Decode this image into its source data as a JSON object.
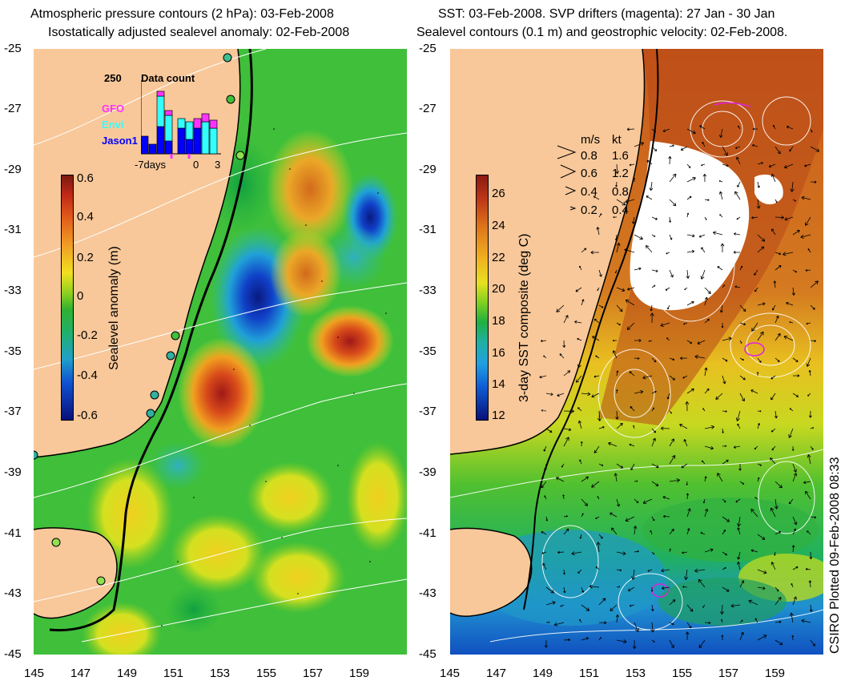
{
  "left_panel": {
    "title_line1": "Atmospheric pressure contours (2 hPa): 03-Feb-2008",
    "title_line2": "Isostatically adjusted sealevel anomaly: 02-Feb-2008",
    "colorbar": {
      "label": "Sealevel anomaly (m)",
      "ticks": [
        "0.6",
        "0.4",
        "0.2",
        "0",
        "-0.2",
        "-0.4",
        "-0.6"
      ]
    },
    "inset": {
      "title": "Data count",
      "ymax_label": "250",
      "legend": [
        {
          "name": "GFO",
          "color": "#ff33ff"
        },
        {
          "name": "Envi",
          "color": "#33ffff"
        },
        {
          "name": "Jason1",
          "color": "#0000ff"
        }
      ],
      "xlabels": [
        "-7days",
        "0",
        "3"
      ]
    }
  },
  "right_panel": {
    "title_line1": "SST: 03-Feb-2008. SVP drifters (magenta): 27 Jan - 30 Jan",
    "title_line2": "Sealevel contours (0.1 m) and geostrophic velocity: 02-Feb-2008.",
    "colorbar": {
      "label": "3-day SST composite (deg C)",
      "ticks": [
        "26",
        "24",
        "22",
        "20",
        "18",
        "16",
        "14",
        "12"
      ]
    },
    "velocity_key": {
      "header_ms": "m/s",
      "header_kt": "kt",
      "rows": [
        {
          "ms": "0.8",
          "kt": "1.6"
        },
        {
          "ms": "0.6",
          "kt": "1.2"
        },
        {
          "ms": "0.4",
          "kt": "0.8"
        },
        {
          "ms": "0.2",
          "kt": "0.4"
        }
      ]
    }
  },
  "axes": {
    "lat_labels": [
      "-25",
      "-27",
      "-29",
      "-31",
      "-33",
      "-35",
      "-37",
      "-39",
      "-41",
      "-43",
      "-45"
    ],
    "lon_labels_left": [
      "145",
      "147",
      "149",
      "151",
      "153",
      "155",
      "157",
      "159"
    ],
    "lon_labels_right": [
      "145",
      "147",
      "149",
      "151",
      "153",
      "155",
      "157",
      "159"
    ]
  },
  "credit": "CSIRO Plotted 09-Feb-2008 08:33",
  "colors": {
    "land": "#f8c89a",
    "coast": "#000000",
    "contour": "#ffffff"
  }
}
